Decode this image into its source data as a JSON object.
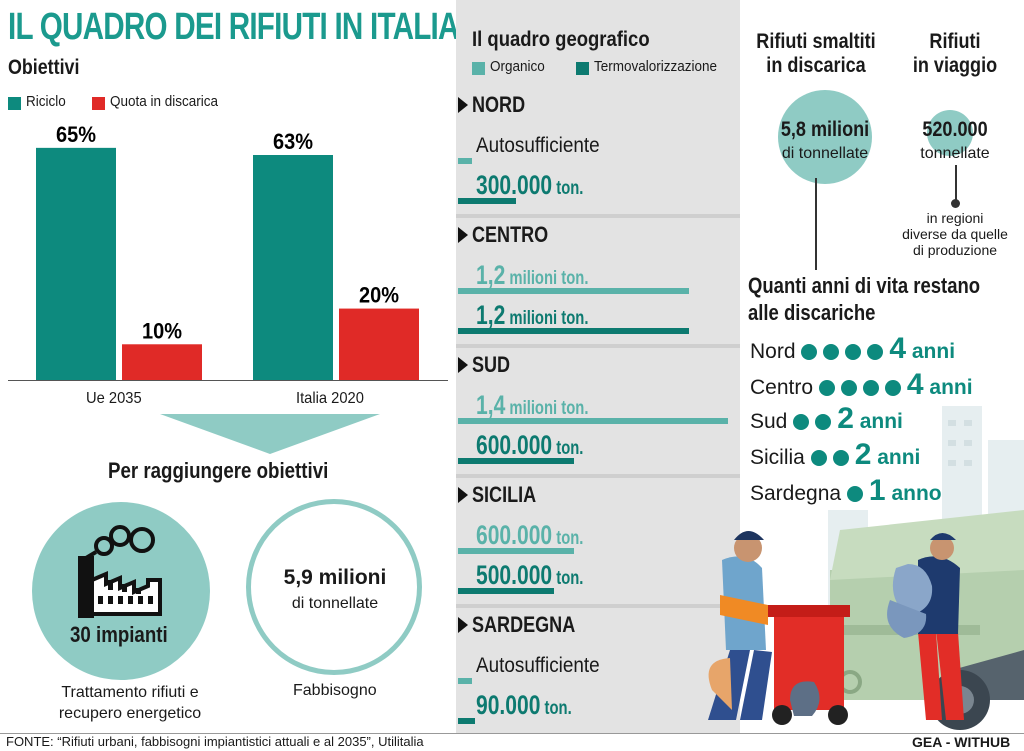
{
  "title": "IL QUADRO DEI RIFIUTI IN ITALIA",
  "left": {
    "heading": "Obiettivi",
    "legend": [
      {
        "label": "Riciclo",
        "color": "#0d8a7e"
      },
      {
        "label": "Quota in discarica",
        "color": "#e02a27"
      }
    ],
    "arrow_heading": "Per raggiungere obiettivi",
    "impianti_label": "30 impianti",
    "impianti_caption": "Trattamento rifiuti e recupero energetico",
    "fabb_value": "5,9 milioni",
    "fabb_unit": "di tonnellate",
    "fabb_caption": "Fabbisogno",
    "icons": [
      "factory-icon"
    ]
  },
  "chart_data": [
    {
      "type": "bar",
      "categories": [
        "Ue 2035",
        "Italia 2020"
      ],
      "series": [
        {
          "name": "Riciclo",
          "values": [
            65,
            63
          ],
          "labels": [
            "65%",
            "63%"
          ],
          "color": "#0d8a7e"
        },
        {
          "name": "Quota in discarica",
          "values": [
            10,
            20
          ],
          "labels": [
            "10%",
            "20%"
          ],
          "color": "#e02a27"
        }
      ],
      "ylim": [
        0,
        70
      ]
    },
    {
      "type": "bar",
      "title": "Il quadro geografico",
      "legend": [
        {
          "label": "Organico",
          "color": "#5ab2a9"
        },
        {
          "label": "Termovalorizzazione",
          "color": "#0d7a70"
        }
      ],
      "regions": [
        {
          "name": "NORD",
          "organico": {
            "text": "Autosufficiente",
            "tonnes": 0
          },
          "termo": {
            "text": "300.000",
            "unit": "ton.",
            "tonnes": 300000
          }
        },
        {
          "name": "CENTRO",
          "organico": {
            "text": "1,2",
            "unit": "milioni ton.",
            "tonnes": 1200000
          },
          "termo": {
            "text": "1,2",
            "unit": "milioni ton.",
            "tonnes": 1200000
          }
        },
        {
          "name": "SUD",
          "organico": {
            "text": "1,4",
            "unit": "milioni ton.",
            "tonnes": 1400000
          },
          "termo": {
            "text": "600.000",
            "unit": "ton.",
            "tonnes": 600000
          }
        },
        {
          "name": "SICILIA",
          "organico": {
            "text": "600.000",
            "unit": "ton.",
            "tonnes": 600000
          },
          "termo": {
            "text": "500.000",
            "unit": "ton.",
            "tonnes": 500000
          }
        },
        {
          "name": "SARDEGNA",
          "organico": {
            "text": "Autosufficiente",
            "tonnes": 0
          },
          "termo": {
            "text": "90.000",
            "unit": "ton.",
            "tonnes": 90000
          }
        }
      ]
    },
    {
      "type": "table",
      "title": "Quanti anni di vita restano alle discariche",
      "rows": [
        {
          "region": "Nord",
          "years": 4,
          "unit": "anni"
        },
        {
          "region": "Centro",
          "years": 4,
          "unit": "anni"
        },
        {
          "region": "Sud",
          "years": 2,
          "unit": "anni"
        },
        {
          "region": "Sicilia",
          "years": 2,
          "unit": "anni"
        },
        {
          "region": "Sardegna",
          "years": 1,
          "unit": "anno"
        }
      ]
    }
  ],
  "right": {
    "disc_title_1": "Rifiuti smaltiti",
    "disc_title_2": "in discarica",
    "disc_value": "5,8 milioni",
    "disc_unit": "di tonnellate",
    "viag_title_1": "Rifiuti",
    "viag_title_2": "in viaggio",
    "viag_value": "520.000",
    "viag_unit": "tonnellate",
    "viag_note_1": "in regioni",
    "viag_note_2": "diverse da quelle",
    "viag_note_3": "di produzione",
    "life_title_1": "Quanti anni di vita restano",
    "life_title_2": "alle discariche"
  },
  "footer": {
    "source": "FONTE: “Rifiuti urbani, fabbisogni impiantistici attuali e al 2035”, Utilitalia",
    "credit": "GEA - WITHUB"
  }
}
